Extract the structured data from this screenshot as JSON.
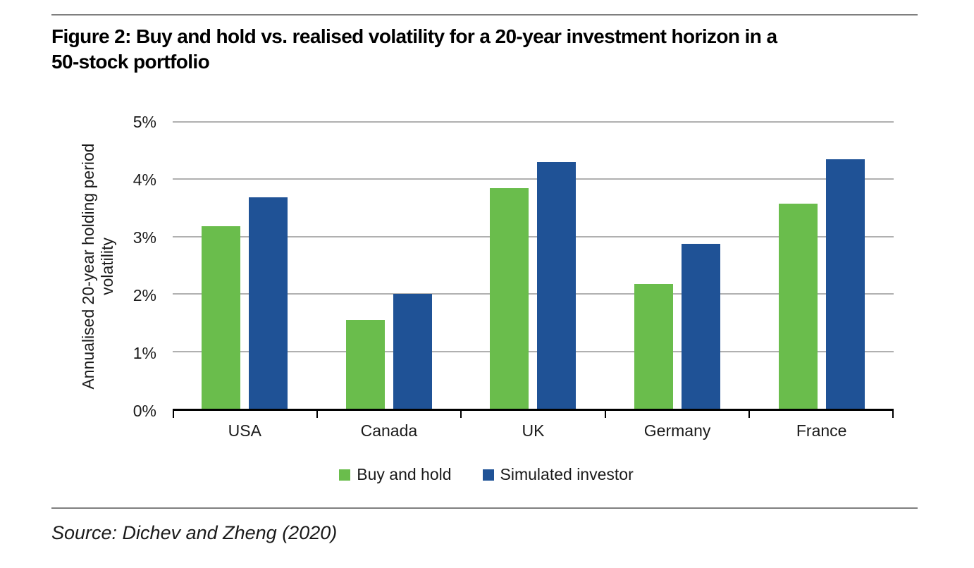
{
  "page": {
    "title_lines": [
      "Figure 2: Buy and hold vs. realised volatility for a 20-year investment horizon in a",
      "50-stock portfolio"
    ],
    "source": "Source: Dichev and Zheng (2020)"
  },
  "colors": {
    "buy_and_hold_green": "#6ABD4C",
    "simulated_investor_blue": "#1F5296",
    "gridline_gray": "#B0B0B0",
    "axis_black": "#000000",
    "rule_gray": "#7F7F7F"
  },
  "chart_data": {
    "type": "bar",
    "title": "Figure 2: Buy and hold vs. realised volatility for a 20-year investment horizon in a 50-stock portfolio",
    "categories": [
      "USA",
      "Canada",
      "UK",
      "Germany",
      "France"
    ],
    "series": [
      {
        "name": "Buy and hold",
        "color": "#6ABD4C",
        "values": [
          3.18,
          1.55,
          3.85,
          2.17,
          3.58
        ]
      },
      {
        "name": "Simulated investor",
        "color": "#1F5296",
        "values": [
          3.68,
          2.0,
          4.3,
          2.87,
          4.35
        ]
      }
    ],
    "xlabel": "",
    "ylabel": "Annualised 20-year holding period volatility",
    "ylabel_lines": [
      "Annualised 20-year holding period",
      "volatility"
    ],
    "yticks": [
      "5%",
      "4%",
      "3%",
      "2%",
      "1%",
      "0%"
    ],
    "ylim": [
      0,
      5
    ],
    "grid": true,
    "legend_position": "bottom"
  }
}
